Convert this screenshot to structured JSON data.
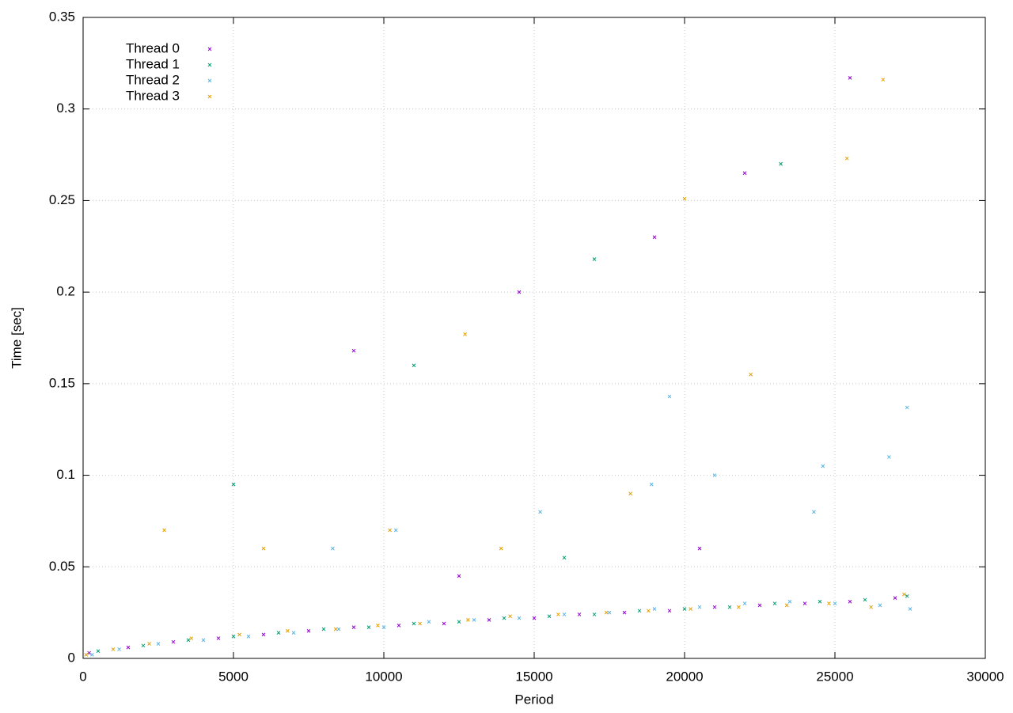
{
  "chart_data": {
    "type": "scatter",
    "xlabel": "Period",
    "ylabel": "Time [sec]",
    "xlim": [
      0,
      30000
    ],
    "xticks": [
      0,
      5000,
      10000,
      15000,
      20000,
      25000,
      30000
    ],
    "ylim": [
      0,
      0.35
    ],
    "yticks": [
      0,
      0.05,
      0.1,
      0.15,
      0.2,
      0.25,
      0.3,
      0.35
    ],
    "grid": true,
    "legend": "upper left",
    "series": [
      {
        "name": "Thread 0",
        "color": "#9400d3",
        "x": [
          200,
          1500,
          3000,
          4500,
          6000,
          7500,
          9000,
          10500,
          12000,
          13500,
          15000,
          16500,
          18000,
          19500,
          21000,
          22500,
          24000,
          25500,
          27000,
          9000,
          14500,
          19000,
          22000,
          25500,
          12500,
          20500
        ],
        "values": [
          0.003,
          0.006,
          0.009,
          0.011,
          0.013,
          0.015,
          0.017,
          0.018,
          0.019,
          0.021,
          0.022,
          0.024,
          0.025,
          0.026,
          0.028,
          0.029,
          0.03,
          0.031,
          0.033,
          0.168,
          0.2,
          0.23,
          0.265,
          0.317,
          0.045,
          0.06
        ]
      },
      {
        "name": "Thread 1",
        "color": "#009e73",
        "x": [
          500,
          2000,
          3500,
          5000,
          6500,
          8000,
          9500,
          11000,
          12500,
          14000,
          15500,
          17000,
          18500,
          20000,
          21500,
          23000,
          24500,
          26000,
          27400,
          5000,
          11000,
          17000,
          23200,
          16000
        ],
        "values": [
          0.004,
          0.007,
          0.01,
          0.012,
          0.014,
          0.016,
          0.017,
          0.019,
          0.02,
          0.022,
          0.023,
          0.024,
          0.026,
          0.027,
          0.028,
          0.03,
          0.031,
          0.032,
          0.034,
          0.095,
          0.16,
          0.218,
          0.27,
          0.055
        ]
      },
      {
        "name": "Thread 2",
        "color": "#56b4e9",
        "x": [
          300,
          1200,
          2500,
          4000,
          5500,
          7000,
          8500,
          10000,
          11500,
          13000,
          14500,
          16000,
          17500,
          19000,
          20500,
          22000,
          23500,
          25000,
          26500,
          27500,
          8300,
          10400,
          15200,
          18900,
          21000,
          24600,
          26800,
          27400,
          19500,
          24300
        ],
        "values": [
          0.002,
          0.005,
          0.008,
          0.01,
          0.012,
          0.014,
          0.016,
          0.017,
          0.02,
          0.021,
          0.022,
          0.024,
          0.025,
          0.027,
          0.028,
          0.03,
          0.031,
          0.03,
          0.029,
          0.027,
          0.06,
          0.07,
          0.08,
          0.095,
          0.1,
          0.105,
          0.11,
          0.137,
          0.143,
          0.08
        ]
      },
      {
        "name": "Thread 3",
        "color": "#e69f00",
        "x": [
          100,
          1000,
          2200,
          3600,
          5200,
          6800,
          8400,
          9800,
          11200,
          12800,
          14200,
          15800,
          17400,
          18800,
          20200,
          21800,
          23400,
          24800,
          26200,
          27300,
          2700,
          6000,
          10200,
          13900,
          18200,
          22200,
          25400,
          26600,
          12700,
          20000
        ],
        "values": [
          0.002,
          0.005,
          0.008,
          0.011,
          0.013,
          0.015,
          0.016,
          0.018,
          0.019,
          0.021,
          0.023,
          0.024,
          0.025,
          0.026,
          0.027,
          0.028,
          0.029,
          0.03,
          0.028,
          0.035,
          0.07,
          0.06,
          0.07,
          0.06,
          0.09,
          0.155,
          0.273,
          0.316,
          0.177,
          0.251
        ]
      }
    ]
  }
}
